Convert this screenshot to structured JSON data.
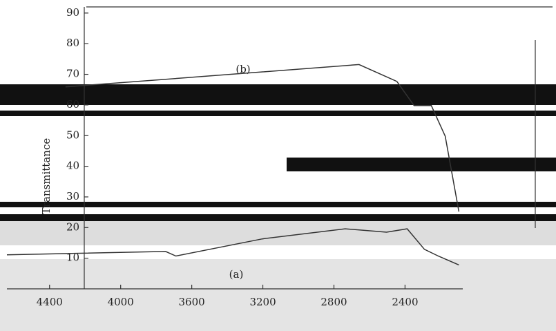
{
  "chart_data": {
    "type": "line",
    "y_label": "Transmittance",
    "annotations": [
      "(a)",
      "(b)"
    ],
    "xlim": [
      4640,
      1570
    ],
    "xticks": [
      4400,
      4000,
      3600,
      3200,
      2800,
      2400
    ],
    "ylim": [
      0,
      92
    ],
    "yticks": [
      10,
      20,
      30,
      40,
      50,
      60,
      70,
      80,
      90
    ],
    "series": [
      {
        "name": "(a)",
        "color": "#333333",
        "x": [
          4640,
          3747,
          3689,
          3203,
          2737,
          2504,
          2388,
          2291,
          2213,
          2097
        ],
        "values": [
          11.1,
          12.2,
          10.7,
          16.3,
          19.6,
          18.5,
          19.6,
          12.9,
          10.7,
          7.8
        ]
      },
      {
        "name": "(b)",
        "color": "#333333",
        "x": [
          4310,
          3902,
          2659,
          2446,
          2349,
          2252,
          2174,
          2097
        ],
        "values": [
          65.9,
          67.7,
          73.2,
          67.7,
          59.8,
          59.8,
          49.8,
          25.2
        ]
      }
    ]
  }
}
